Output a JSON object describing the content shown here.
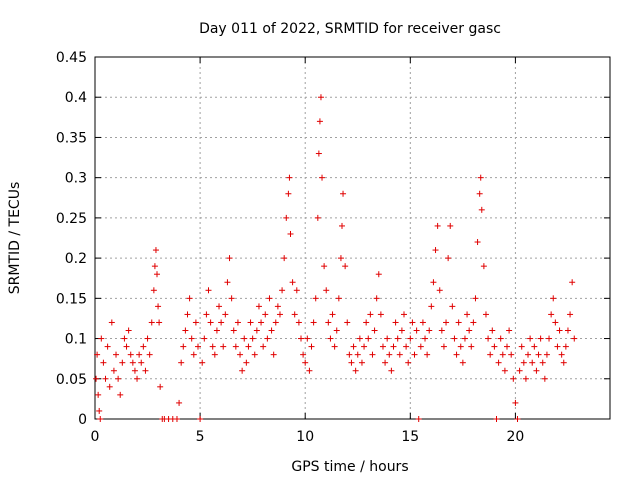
{
  "chart_data": {
    "type": "scatter",
    "title": "Day 011 of 2022, SRMTID for receiver gasc",
    "xlabel": "GPS time / hours",
    "ylabel": "SRMTID / TECUs",
    "xlim": [
      0,
      24.5
    ],
    "ylim": [
      0,
      0.45
    ],
    "x_ticks": [
      0,
      5,
      10,
      15,
      20
    ],
    "x_tick_labels": [
      "0",
      "5",
      "10",
      "15",
      "20"
    ],
    "y_ticks": [
      0,
      0.05,
      0.1,
      0.15,
      0.2,
      0.25,
      0.3,
      0.35,
      0.4,
      0.45
    ],
    "y_tick_labels": [
      "0",
      "0.05",
      "0.1",
      "0.15",
      "0.2",
      "0.25",
      "0.3",
      "0.35",
      "0.4",
      "0.45"
    ],
    "grid": true,
    "marker": "+",
    "series_color": "#e00000",
    "series": [
      {
        "name": "gasc",
        "points": [
          [
            0.05,
            0.05
          ],
          [
            0.1,
            0.08
          ],
          [
            0.15,
            0.03
          ],
          [
            0.2,
            0.01
          ],
          [
            0.25,
            0.0
          ],
          [
            0.3,
            0.1
          ],
          [
            0.4,
            0.07
          ],
          [
            0.5,
            0.05
          ],
          [
            0.6,
            0.09
          ],
          [
            0.7,
            0.04
          ],
          [
            0.8,
            0.12
          ],
          [
            0.9,
            0.06
          ],
          [
            1.0,
            0.08
          ],
          [
            1.1,
            0.05
          ],
          [
            1.2,
            0.03
          ],
          [
            1.3,
            0.07
          ],
          [
            1.4,
            0.1
          ],
          [
            1.5,
            0.09
          ],
          [
            1.6,
            0.11
          ],
          [
            1.7,
            0.08
          ],
          [
            1.8,
            0.07
          ],
          [
            1.9,
            0.06
          ],
          [
            2.0,
            0.05
          ],
          [
            2.1,
            0.08
          ],
          [
            2.2,
            0.07
          ],
          [
            2.3,
            0.09
          ],
          [
            2.4,
            0.06
          ],
          [
            2.5,
            0.1
          ],
          [
            2.6,
            0.08
          ],
          [
            2.7,
            0.12
          ],
          [
            2.8,
            0.16
          ],
          [
            2.85,
            0.19
          ],
          [
            2.9,
            0.21
          ],
          [
            2.95,
            0.18
          ],
          [
            3.0,
            0.14
          ],
          [
            3.05,
            0.12
          ],
          [
            3.1,
            0.04
          ],
          [
            3.2,
            0.0
          ],
          [
            3.3,
            0.0
          ],
          [
            3.5,
            0.0
          ],
          [
            3.7,
            0.0
          ],
          [
            3.9,
            0.0
          ],
          [
            4.0,
            0.02
          ],
          [
            4.1,
            0.07
          ],
          [
            4.2,
            0.09
          ],
          [
            4.3,
            0.11
          ],
          [
            4.4,
            0.13
          ],
          [
            4.5,
            0.15
          ],
          [
            4.6,
            0.1
          ],
          [
            4.7,
            0.08
          ],
          [
            4.8,
            0.12
          ],
          [
            4.9,
            0.09
          ],
          [
            5.0,
            0.0
          ],
          [
            5.1,
            0.07
          ],
          [
            5.2,
            0.1
          ],
          [
            5.3,
            0.13
          ],
          [
            5.4,
            0.16
          ],
          [
            5.5,
            0.12
          ],
          [
            5.6,
            0.09
          ],
          [
            5.7,
            0.08
          ],
          [
            5.8,
            0.11
          ],
          [
            5.9,
            0.14
          ],
          [
            6.0,
            0.12
          ],
          [
            6.1,
            0.09
          ],
          [
            6.2,
            0.13
          ],
          [
            6.3,
            0.17
          ],
          [
            6.4,
            0.2
          ],
          [
            6.5,
            0.15
          ],
          [
            6.6,
            0.11
          ],
          [
            6.7,
            0.09
          ],
          [
            6.8,
            0.12
          ],
          [
            6.9,
            0.08
          ],
          [
            7.0,
            0.06
          ],
          [
            7.1,
            0.1
          ],
          [
            7.2,
            0.07
          ],
          [
            7.3,
            0.09
          ],
          [
            7.4,
            0.12
          ],
          [
            7.5,
            0.1
          ],
          [
            7.6,
            0.08
          ],
          [
            7.7,
            0.11
          ],
          [
            7.8,
            0.14
          ],
          [
            7.9,
            0.12
          ],
          [
            8.0,
            0.09
          ],
          [
            8.1,
            0.13
          ],
          [
            8.2,
            0.1
          ],
          [
            8.3,
            0.15
          ],
          [
            8.4,
            0.11
          ],
          [
            8.5,
            0.08
          ],
          [
            8.6,
            0.12
          ],
          [
            8.7,
            0.14
          ],
          [
            8.8,
            0.13
          ],
          [
            8.9,
            0.16
          ],
          [
            9.0,
            0.2
          ],
          [
            9.1,
            0.25
          ],
          [
            9.2,
            0.28
          ],
          [
            9.25,
            0.3
          ],
          [
            9.3,
            0.23
          ],
          [
            9.4,
            0.17
          ],
          [
            9.5,
            0.13
          ],
          [
            9.6,
            0.16
          ],
          [
            9.7,
            0.12
          ],
          [
            9.8,
            0.1
          ],
          [
            9.9,
            0.08
          ],
          [
            10.0,
            0.07
          ],
          [
            10.1,
            0.1
          ],
          [
            10.2,
            0.06
          ],
          [
            10.3,
            0.09
          ],
          [
            10.4,
            0.12
          ],
          [
            10.5,
            0.15
          ],
          [
            10.6,
            0.25
          ],
          [
            10.65,
            0.33
          ],
          [
            10.7,
            0.37
          ],
          [
            10.75,
            0.4
          ],
          [
            10.8,
            0.3
          ],
          [
            10.9,
            0.19
          ],
          [
            11.0,
            0.16
          ],
          [
            11.1,
            0.12
          ],
          [
            11.2,
            0.1
          ],
          [
            11.3,
            0.13
          ],
          [
            11.4,
            0.09
          ],
          [
            11.5,
            0.11
          ],
          [
            11.6,
            0.15
          ],
          [
            11.7,
            0.2
          ],
          [
            11.75,
            0.24
          ],
          [
            11.8,
            0.28
          ],
          [
            11.9,
            0.19
          ],
          [
            12.0,
            0.12
          ],
          [
            12.1,
            0.08
          ],
          [
            12.2,
            0.07
          ],
          [
            12.3,
            0.09
          ],
          [
            12.4,
            0.06
          ],
          [
            12.5,
            0.08
          ],
          [
            12.6,
            0.1
          ],
          [
            12.7,
            0.07
          ],
          [
            12.8,
            0.09
          ],
          [
            12.9,
            0.12
          ],
          [
            13.0,
            0.1
          ],
          [
            13.1,
            0.13
          ],
          [
            13.2,
            0.08
          ],
          [
            13.3,
            0.11
          ],
          [
            13.4,
            0.15
          ],
          [
            13.5,
            0.18
          ],
          [
            13.6,
            0.13
          ],
          [
            13.7,
            0.09
          ],
          [
            13.8,
            0.07
          ],
          [
            13.9,
            0.1
          ],
          [
            14.0,
            0.08
          ],
          [
            14.1,
            0.06
          ],
          [
            14.2,
            0.09
          ],
          [
            14.3,
            0.12
          ],
          [
            14.4,
            0.1
          ],
          [
            14.5,
            0.08
          ],
          [
            14.6,
            0.11
          ],
          [
            14.7,
            0.13
          ],
          [
            14.8,
            0.09
          ],
          [
            14.9,
            0.07
          ],
          [
            15.0,
            0.1
          ],
          [
            15.1,
            0.12
          ],
          [
            15.2,
            0.08
          ],
          [
            15.3,
            0.11
          ],
          [
            15.4,
            0.0
          ],
          [
            15.5,
            0.09
          ],
          [
            15.6,
            0.12
          ],
          [
            15.7,
            0.1
          ],
          [
            15.8,
            0.08
          ],
          [
            15.9,
            0.11
          ],
          [
            16.0,
            0.14
          ],
          [
            16.1,
            0.17
          ],
          [
            16.2,
            0.21
          ],
          [
            16.3,
            0.24
          ],
          [
            16.4,
            0.16
          ],
          [
            16.5,
            0.11
          ],
          [
            16.6,
            0.09
          ],
          [
            16.7,
            0.12
          ],
          [
            16.8,
            0.2
          ],
          [
            16.9,
            0.24
          ],
          [
            17.0,
            0.14
          ],
          [
            17.1,
            0.1
          ],
          [
            17.2,
            0.08
          ],
          [
            17.3,
            0.12
          ],
          [
            17.4,
            0.09
          ],
          [
            17.5,
            0.07
          ],
          [
            17.6,
            0.1
          ],
          [
            17.7,
            0.13
          ],
          [
            17.8,
            0.11
          ],
          [
            17.9,
            0.09
          ],
          [
            18.0,
            0.12
          ],
          [
            18.1,
            0.15
          ],
          [
            18.2,
            0.22
          ],
          [
            18.3,
            0.28
          ],
          [
            18.35,
            0.3
          ],
          [
            18.4,
            0.26
          ],
          [
            18.5,
            0.19
          ],
          [
            18.6,
            0.13
          ],
          [
            18.7,
            0.1
          ],
          [
            18.8,
            0.08
          ],
          [
            18.9,
            0.11
          ],
          [
            19.0,
            0.09
          ],
          [
            19.1,
            0.0
          ],
          [
            19.2,
            0.07
          ],
          [
            19.3,
            0.1
          ],
          [
            19.4,
            0.08
          ],
          [
            19.5,
            0.06
          ],
          [
            19.6,
            0.09
          ],
          [
            19.7,
            0.11
          ],
          [
            19.8,
            0.08
          ],
          [
            19.9,
            0.05
          ],
          [
            20.0,
            0.02
          ],
          [
            20.1,
            0.0
          ],
          [
            20.2,
            0.06
          ],
          [
            20.3,
            0.09
          ],
          [
            20.4,
            0.07
          ],
          [
            20.5,
            0.05
          ],
          [
            20.6,
            0.08
          ],
          [
            20.7,
            0.1
          ],
          [
            20.8,
            0.07
          ],
          [
            20.9,
            0.09
          ],
          [
            21.0,
            0.06
          ],
          [
            21.1,
            0.08
          ],
          [
            21.2,
            0.1
          ],
          [
            21.3,
            0.07
          ],
          [
            21.4,
            0.05
          ],
          [
            21.5,
            0.08
          ],
          [
            21.6,
            0.1
          ],
          [
            21.7,
            0.13
          ],
          [
            21.8,
            0.15
          ],
          [
            21.9,
            0.12
          ],
          [
            22.0,
            0.09
          ],
          [
            22.1,
            0.11
          ],
          [
            22.2,
            0.08
          ],
          [
            22.3,
            0.07
          ],
          [
            22.4,
            0.09
          ],
          [
            22.5,
            0.11
          ],
          [
            22.6,
            0.13
          ],
          [
            22.7,
            0.17
          ],
          [
            22.8,
            0.1
          ]
        ]
      }
    ]
  }
}
